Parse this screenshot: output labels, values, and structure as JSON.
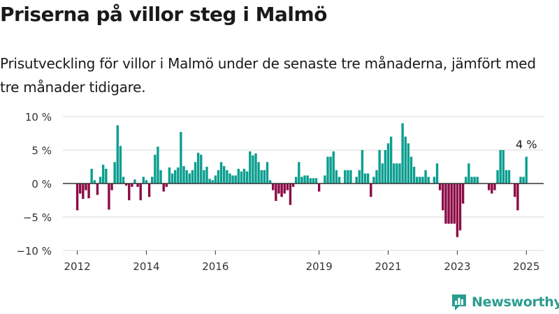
{
  "header": {
    "title": "Priserna på villor steg i Malmö",
    "subtitle": "Prisutveckling för villor i Malmö under de senaste tre månaderna, jämfört med tre månader tidigare."
  },
  "brand": {
    "name": "Newsworthy",
    "icon": "newsworthy-logo-icon",
    "color": "#2a9d8f"
  },
  "colors": {
    "positive": "#0a9e8f",
    "negative": "#8c0a45",
    "grid": "#d9d9d9",
    "zero_line": "#333333"
  },
  "chart_data": {
    "type": "bar",
    "unit": "%",
    "x_start": "2011-08",
    "x_end": "2025-07",
    "ylim": [
      -10,
      10
    ],
    "yticks": [
      10,
      5,
      0,
      -5,
      -10
    ],
    "ytick_labels": [
      "10 %",
      "5 %",
      "0 %",
      "−5 %",
      "−10 %"
    ],
    "xticks": [
      "2012",
      "2014",
      "2016",
      "2019",
      "2021",
      "2023",
      "2025"
    ],
    "xtick_positions": [
      "2012-01",
      "2014-01",
      "2016-01",
      "2019-01",
      "2021-01",
      "2023-01",
      "2025-01"
    ],
    "annotation": {
      "text": "4 %",
      "month": "2025-01"
    },
    "series": [
      {
        "start_month": "2012-01",
        "values": [
          -4.0,
          -1.5,
          -2.3,
          -1.0,
          -2.2,
          2.2,
          0.5,
          -1.7,
          1.0,
          2.8,
          2.2,
          -3.9,
          -1.0,
          3.2,
          8.7,
          5.6,
          1.0,
          -0.3,
          -2.5,
          -0.5,
          0.6,
          -0.5,
          -2.5,
          1.0,
          0.5,
          -2.0,
          1.0,
          4.3,
          5.5,
          2.0,
          -1.2,
          -0.5,
          2.4,
          1.5,
          2.0,
          2.4,
          7.7,
          2.6,
          2.0,
          1.5,
          2.0,
          3.2,
          4.6,
          4.3,
          2.0,
          2.5,
          0.7,
          0.5,
          1.2,
          2.0,
          3.2,
          2.6,
          2.0,
          1.5,
          1.2,
          1.2,
          2.2,
          1.8,
          2.2,
          1.8,
          4.8,
          4.2,
          4.5,
          3.2,
          2.0,
          2.0,
          3.2,
          0.5,
          -1.0,
          -2.6,
          -1.5,
          -2.0,
          -1.5,
          -1.0,
          -3.2,
          -0.5,
          1.0,
          3.2,
          1.0,
          1.2,
          1.2,
          0.8,
          0.8,
          0.8,
          -1.2,
          0.0,
          1.2,
          4.0,
          4.0,
          4.8,
          2.0,
          1.0,
          0.0,
          2.0,
          2.0,
          2.0,
          0.0,
          1.0,
          2.0,
          5.0,
          1.5,
          1.5,
          -2.0,
          1.0,
          2.0,
          5.0,
          3.0,
          5.0,
          6.0,
          7.0,
          3.0,
          3.0,
          3.0,
          9.0,
          7.0,
          6.0,
          4.0,
          2.5,
          1.0,
          1.0,
          1.0,
          2.0,
          1.0,
          0.0,
          1.0,
          3.0,
          -1.0,
          -4.0,
          -6.0,
          -6.0,
          -6.0,
          -6.0,
          -8.0,
          -7.0,
          -3.0,
          1.0,
          3.0,
          1.0,
          1.0,
          1.0,
          0.0,
          0.0,
          0.0,
          -1.0,
          -1.5,
          -1.0,
          2.0,
          5.0,
          5.0,
          2.0,
          2.0,
          0.0,
          -2.0,
          -4.0,
          1.0,
          1.0,
          4.0
        ]
      }
    ]
  }
}
